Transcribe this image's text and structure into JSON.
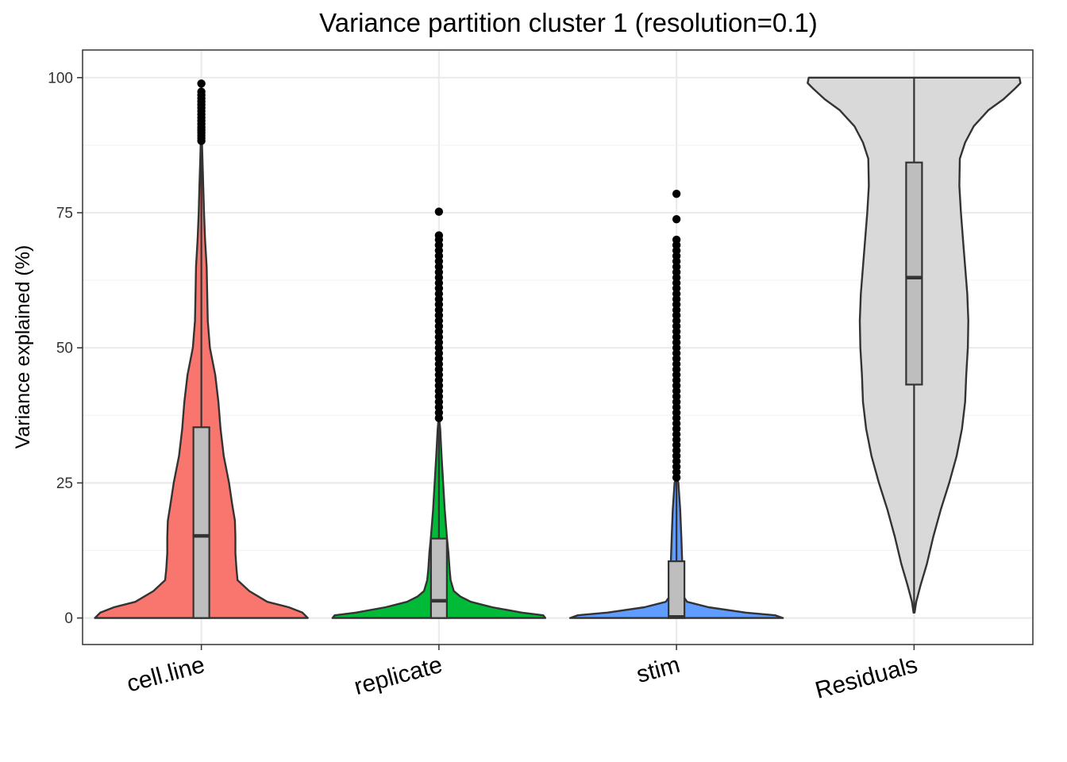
{
  "chart_data": {
    "type": "violin",
    "title": "Variance partition cluster 1 (resolution=0.1)",
    "ylabel": "Variance explained (%)",
    "xlabel": "",
    "ylim": [
      -5,
      105
    ],
    "yticks": [
      0,
      25,
      50,
      75,
      100
    ],
    "grid": true,
    "categories": [
      "cell.line",
      "replicate",
      "stim",
      "Residuals"
    ],
    "series": [
      {
        "category": "cell.line",
        "color": "#F8766D",
        "box": {
          "q1": 0,
          "median": 15.2,
          "q3": 35.3,
          "whisker_low": 0,
          "whisker_high": 88
        },
        "outliers": [
          88.3,
          88.8,
          89.3,
          89.8,
          90.3,
          90.8,
          91.4,
          92.0,
          92.6,
          93.2,
          93.8,
          94.4,
          95.0,
          95.6,
          96.2,
          96.8,
          97.4,
          98.9
        ],
        "density": [
          [
            0,
            1.0
          ],
          [
            1,
            0.95
          ],
          [
            2,
            0.82
          ],
          [
            3,
            0.62
          ],
          [
            5,
            0.45
          ],
          [
            7,
            0.34
          ],
          [
            9,
            0.33
          ],
          [
            12,
            0.32
          ],
          [
            15,
            0.32
          ],
          [
            18,
            0.315
          ],
          [
            21,
            0.29
          ],
          [
            25,
            0.26
          ],
          [
            30,
            0.21
          ],
          [
            35,
            0.18
          ],
          [
            40,
            0.16
          ],
          [
            45,
            0.13
          ],
          [
            50,
            0.08
          ],
          [
            55,
            0.06
          ],
          [
            60,
            0.055
          ],
          [
            65,
            0.05
          ],
          [
            70,
            0.035
          ],
          [
            75,
            0.025
          ],
          [
            80,
            0.018
          ],
          [
            85,
            0.01
          ],
          [
            90,
            0.003
          ]
        ]
      },
      {
        "category": "replicate",
        "color": "#00BA38",
        "box": {
          "q1": 0,
          "median": 3.2,
          "q3": 14.7,
          "whisker_low": 0,
          "whisker_high": 36.5
        },
        "outliers": [
          37,
          38,
          39,
          40,
          41,
          42,
          43,
          44,
          45,
          46,
          47,
          48,
          49,
          50,
          51,
          52,
          53,
          54,
          55,
          56,
          57,
          58,
          59,
          60,
          61,
          62,
          63,
          64,
          65,
          66,
          67,
          68,
          69,
          70,
          70.8,
          75.2
        ],
        "density": [
          [
            0,
            1.0
          ],
          [
            0.5,
            0.98
          ],
          [
            1,
            0.78
          ],
          [
            2,
            0.5
          ],
          [
            3,
            0.3
          ],
          [
            4,
            0.2
          ],
          [
            5,
            0.14
          ],
          [
            7,
            0.11
          ],
          [
            9,
            0.1
          ],
          [
            12,
            0.09
          ],
          [
            15,
            0.075
          ],
          [
            20,
            0.055
          ],
          [
            25,
            0.04
          ],
          [
            30,
            0.025
          ],
          [
            35,
            0.012
          ],
          [
            37,
            0.002
          ]
        ]
      },
      {
        "category": "stim",
        "color": "#619CFF",
        "box": {
          "q1": 0,
          "median": 0.2,
          "q3": 10.5,
          "whisker_low": 0,
          "whisker_high": 26
        },
        "outliers": [
          26,
          27,
          28,
          29,
          30,
          31,
          32,
          33,
          34,
          35,
          36,
          37,
          38,
          39,
          40,
          41,
          42,
          43,
          44,
          45,
          46,
          47,
          48,
          49,
          50,
          51,
          52,
          53,
          54,
          55,
          56,
          57,
          58,
          59,
          60,
          61,
          62,
          63,
          64,
          65,
          66,
          67,
          68,
          69,
          70,
          73.8,
          78.5
        ],
        "density": [
          [
            0,
            1.0
          ],
          [
            0.5,
            0.93
          ],
          [
            1,
            0.65
          ],
          [
            2,
            0.3
          ],
          [
            3,
            0.1
          ],
          [
            4,
            0.065
          ],
          [
            6,
            0.06
          ],
          [
            8,
            0.057
          ],
          [
            10,
            0.054
          ],
          [
            15,
            0.045
          ],
          [
            20,
            0.035
          ],
          [
            25,
            0.018
          ],
          [
            26,
            0.002
          ]
        ]
      },
      {
        "category": "Residuals",
        "color": "#D9D9D9",
        "box": {
          "q1": 43.2,
          "median": 63,
          "q3": 84.3,
          "whisker_low": 1,
          "whisker_high": 100
        },
        "outliers": [],
        "density": [
          [
            1,
            0.005
          ],
          [
            3,
            0.02
          ],
          [
            6,
            0.06
          ],
          [
            10,
            0.12
          ],
          [
            15,
            0.18
          ],
          [
            20,
            0.25
          ],
          [
            25,
            0.33
          ],
          [
            30,
            0.4
          ],
          [
            35,
            0.45
          ],
          [
            40,
            0.48
          ],
          [
            45,
            0.49
          ],
          [
            50,
            0.505
          ],
          [
            55,
            0.51
          ],
          [
            60,
            0.5
          ],
          [
            65,
            0.48
          ],
          [
            70,
            0.46
          ],
          [
            75,
            0.44
          ],
          [
            80,
            0.425
          ],
          [
            85,
            0.43
          ],
          [
            88,
            0.48
          ],
          [
            91,
            0.56
          ],
          [
            94,
            0.7
          ],
          [
            96,
            0.84
          ],
          [
            98,
            0.95
          ],
          [
            99,
            1.0
          ],
          [
            100,
            0.99
          ]
        ]
      }
    ]
  }
}
